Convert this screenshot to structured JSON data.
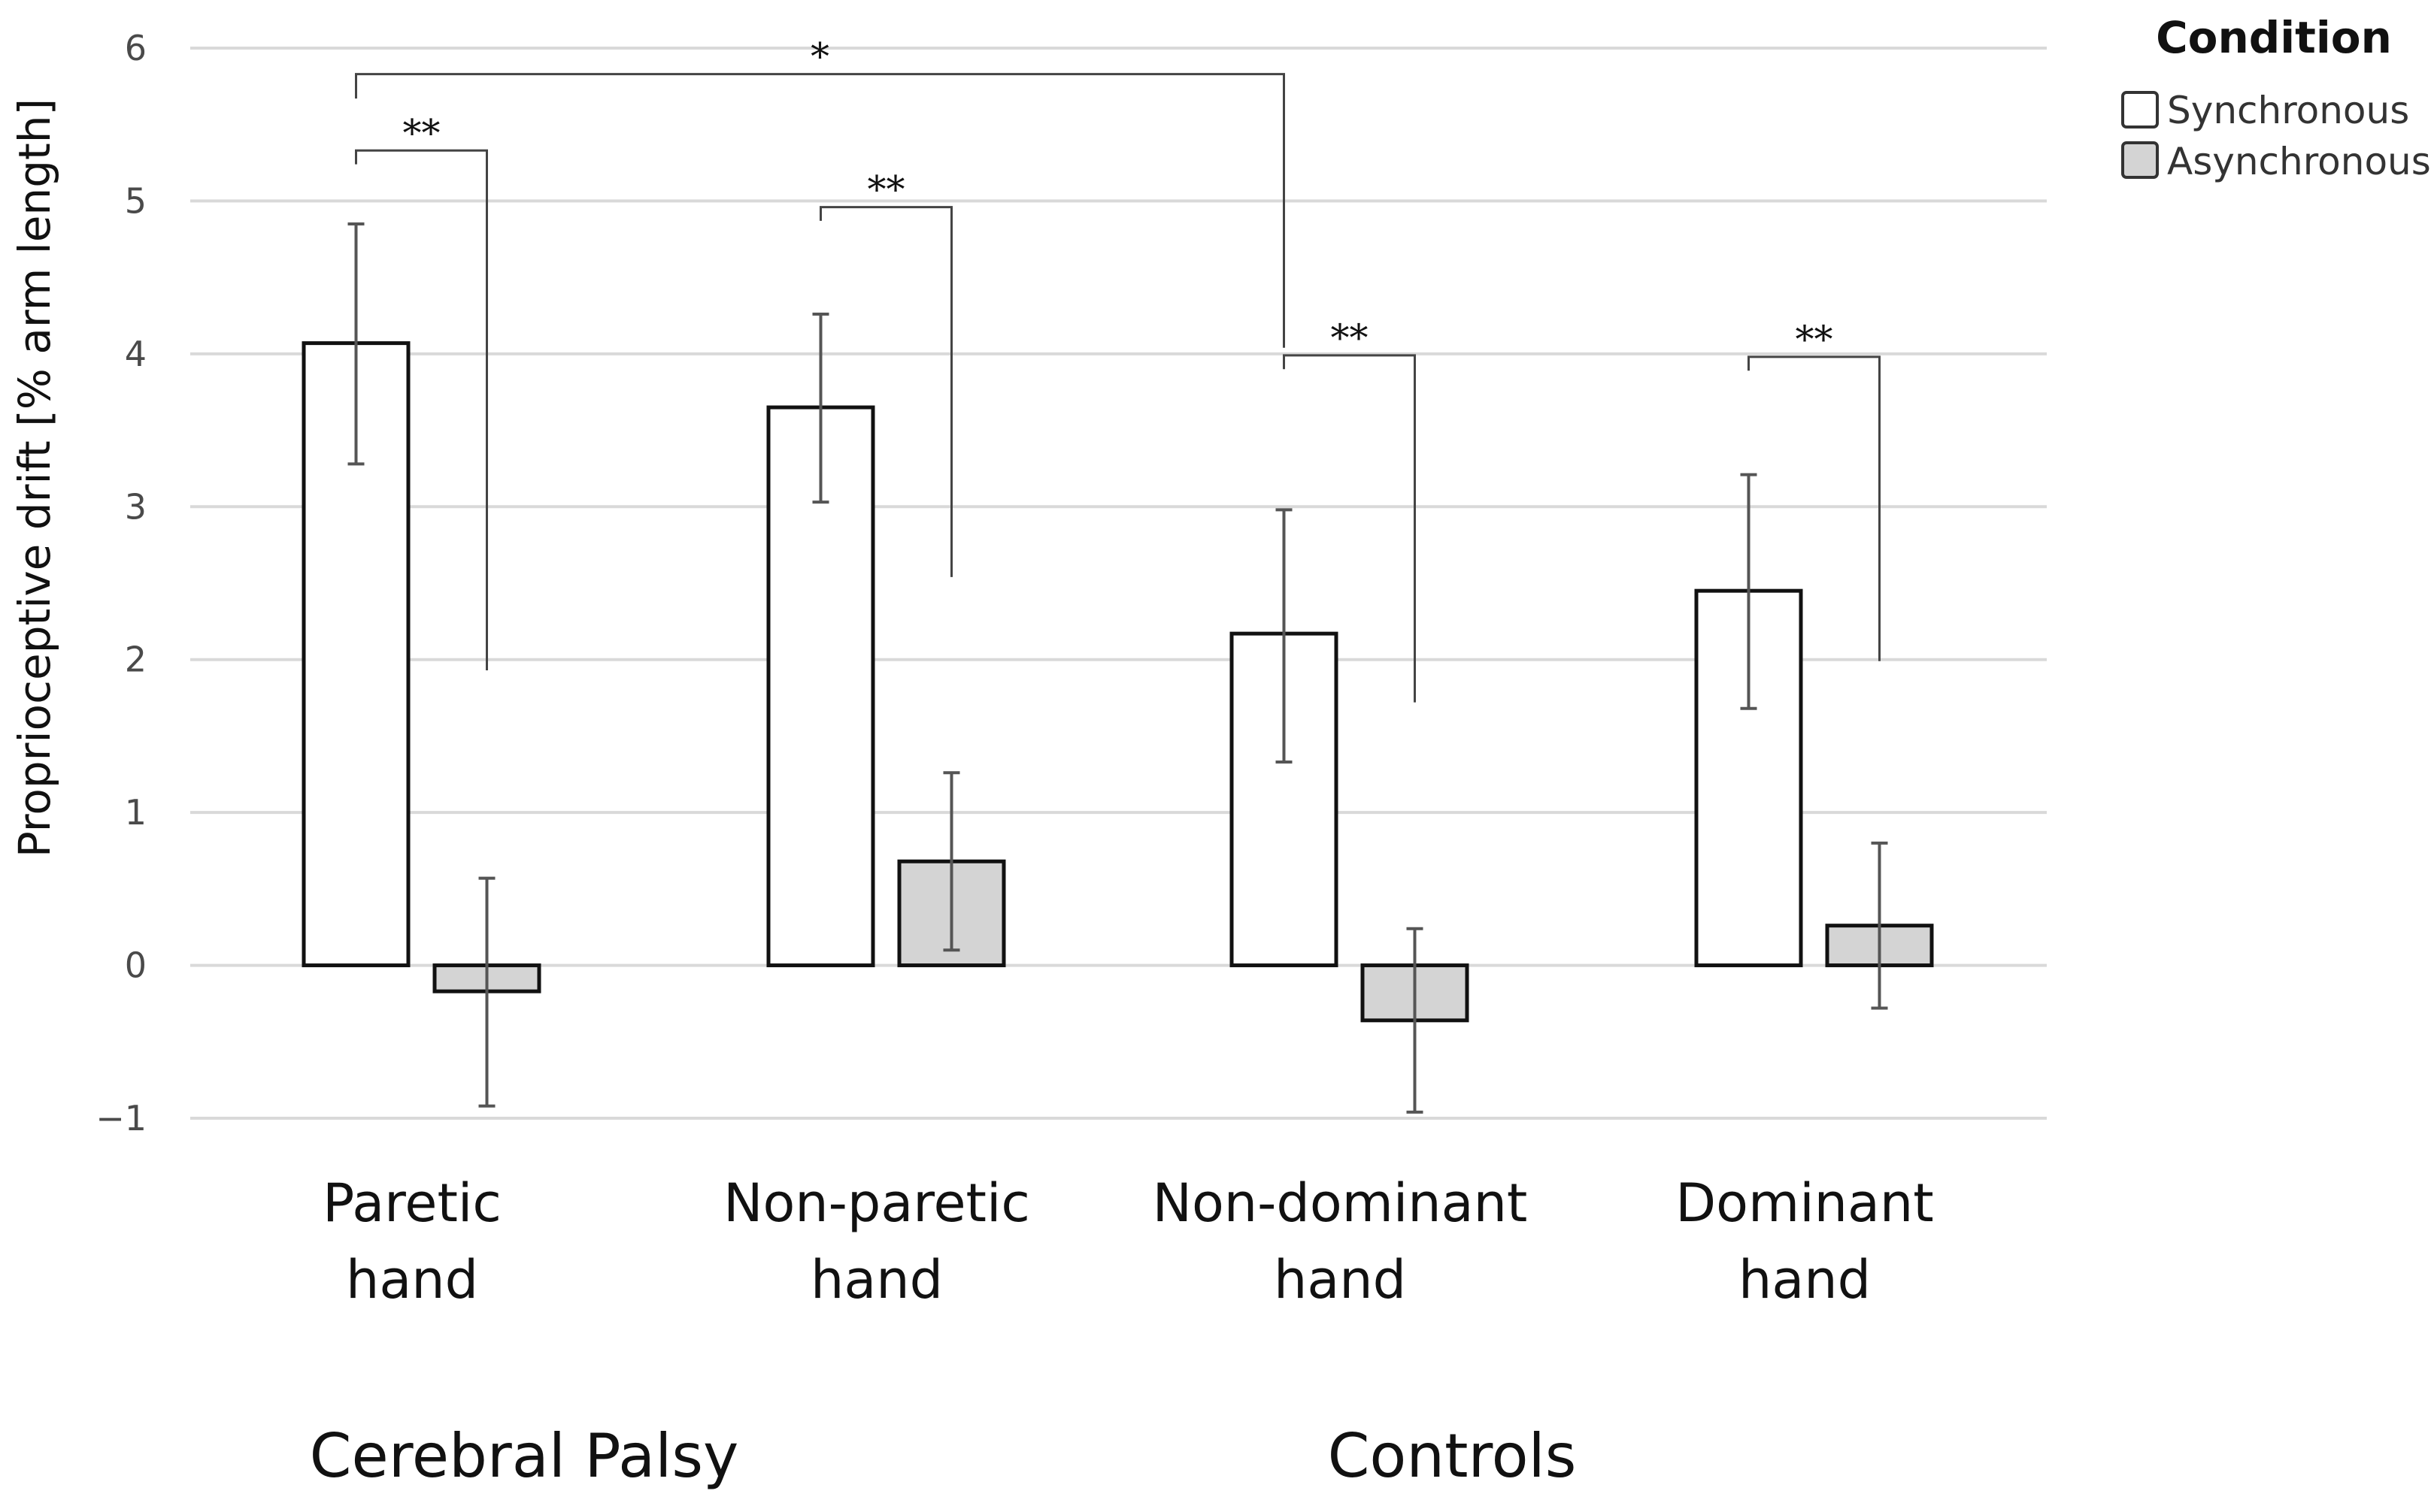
{
  "chart_data": {
    "type": "bar",
    "ylabel": "Proprioceptive drift [% arm length]",
    "xlabel": "",
    "ylim": [
      -1,
      6
    ],
    "yticks": [
      -1,
      0,
      1,
      2,
      3,
      4,
      5,
      6
    ],
    "ytick_labels": [
      "−1",
      "0",
      "1",
      "2",
      "3",
      "4",
      "5",
      "6"
    ],
    "grid": true,
    "categories": [
      [
        "Paretic",
        "hand"
      ],
      [
        "Non-paretic",
        "hand"
      ],
      [
        "Non-dominant",
        "hand"
      ],
      [
        "Dominant",
        "hand"
      ]
    ],
    "groups": [
      {
        "label": "Cerebral Palsy",
        "categories": [
          0,
          1
        ]
      },
      {
        "label": "Controls",
        "categories": [
          2,
          3
        ]
      }
    ],
    "series": [
      {
        "name": "Synchronous",
        "color": "#ffffff",
        "values": [
          4.07,
          3.65,
          2.17,
          2.45
        ],
        "error_low": [
          3.28,
          3.03,
          1.33,
          1.68
        ],
        "error_high": [
          4.85,
          4.26,
          2.98,
          3.21
        ]
      },
      {
        "name": "Asynchronous",
        "color": "#d4d4d4",
        "values": [
          -0.17,
          0.68,
          -0.36,
          0.26
        ],
        "error_low": [
          -0.92,
          0.1,
          -0.96,
          -0.28
        ],
        "error_high": [
          0.57,
          1.26,
          0.24,
          0.8
        ]
      }
    ],
    "significance": [
      {
        "label": "**",
        "from": [
          0,
          0
        ],
        "to": [
          0,
          1
        ],
        "left_base": 5.24,
        "right_base": 1.93,
        "level": 5.33
      },
      {
        "label": "**",
        "from": [
          1,
          0
        ],
        "to": [
          1,
          1
        ],
        "left_base": 4.87,
        "right_base": 2.54,
        "level": 4.96
      },
      {
        "label": "**",
        "from": [
          2,
          0
        ],
        "to": [
          2,
          1
        ],
        "left_base": 3.9,
        "right_base": 1.72,
        "level": 3.99
      },
      {
        "label": "**",
        "from": [
          3,
          0
        ],
        "to": [
          3,
          1
        ],
        "left_base": 3.89,
        "right_base": 1.99,
        "level": 3.98
      },
      {
        "label": "*",
        "from": [
          0,
          0
        ],
        "to": [
          2,
          0
        ],
        "left_base": 5.67,
        "right_base": 4.04,
        "level": 5.83
      }
    ],
    "legend": {
      "title": "Condition",
      "position": "top-right",
      "entries": [
        "Synchronous",
        "Asynchronous"
      ]
    }
  }
}
